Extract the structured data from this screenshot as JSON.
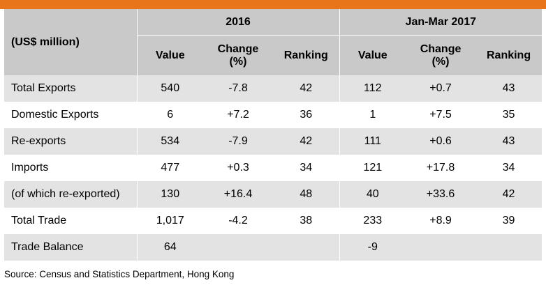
{
  "header": {
    "unit_label": "(US$ million)",
    "group_2016": "2016",
    "group_2017": "Jan-Mar 2017",
    "col_value": "Value",
    "col_change_line1": "Change",
    "col_change_line2": "(%)",
    "col_ranking": "Ranking"
  },
  "rows": [
    {
      "label": "Total Exports",
      "v2016": "540",
      "c2016": "-7.8",
      "r2016": "42",
      "v2017": "112",
      "c2017": "+0.7",
      "r2017": "43"
    },
    {
      "label": "Domestic Exports",
      "v2016": "6",
      "c2016": "+7.2",
      "r2016": "36",
      "v2017": "1",
      "c2017": "+7.5",
      "r2017": "35"
    },
    {
      "label": "Re-exports",
      "v2016": "534",
      "c2016": "-7.9",
      "r2016": "42",
      "v2017": "111",
      "c2017": "+0.6",
      "r2017": "43"
    },
    {
      "label": "Imports",
      "v2016": "477",
      "c2016": "+0.3",
      "r2016": "34",
      "v2017": "121",
      "c2017": "+17.8",
      "r2017": "34"
    },
    {
      "label": "(of which re-exported)",
      "v2016": "130",
      "c2016": "+16.4",
      "r2016": "48",
      "v2017": "40",
      "c2017": "+33.6",
      "r2017": "42"
    },
    {
      "label": "Total Trade",
      "v2016": "1,017",
      "c2016": "-4.2",
      "r2016": "38",
      "v2017": "233",
      "c2017": "+8.9",
      "r2017": "39"
    },
    {
      "label": "Trade Balance",
      "v2016": "64",
      "c2016": "",
      "r2016": "",
      "v2017": "-9",
      "c2017": "",
      "r2017": ""
    }
  ],
  "source": "Source: Census and Statistics Department, Hong Kong",
  "colors": {
    "accent_bar": "#e8751a",
    "header_bg": "#c9c9c9",
    "stripe_bg": "#e3e3e3"
  }
}
